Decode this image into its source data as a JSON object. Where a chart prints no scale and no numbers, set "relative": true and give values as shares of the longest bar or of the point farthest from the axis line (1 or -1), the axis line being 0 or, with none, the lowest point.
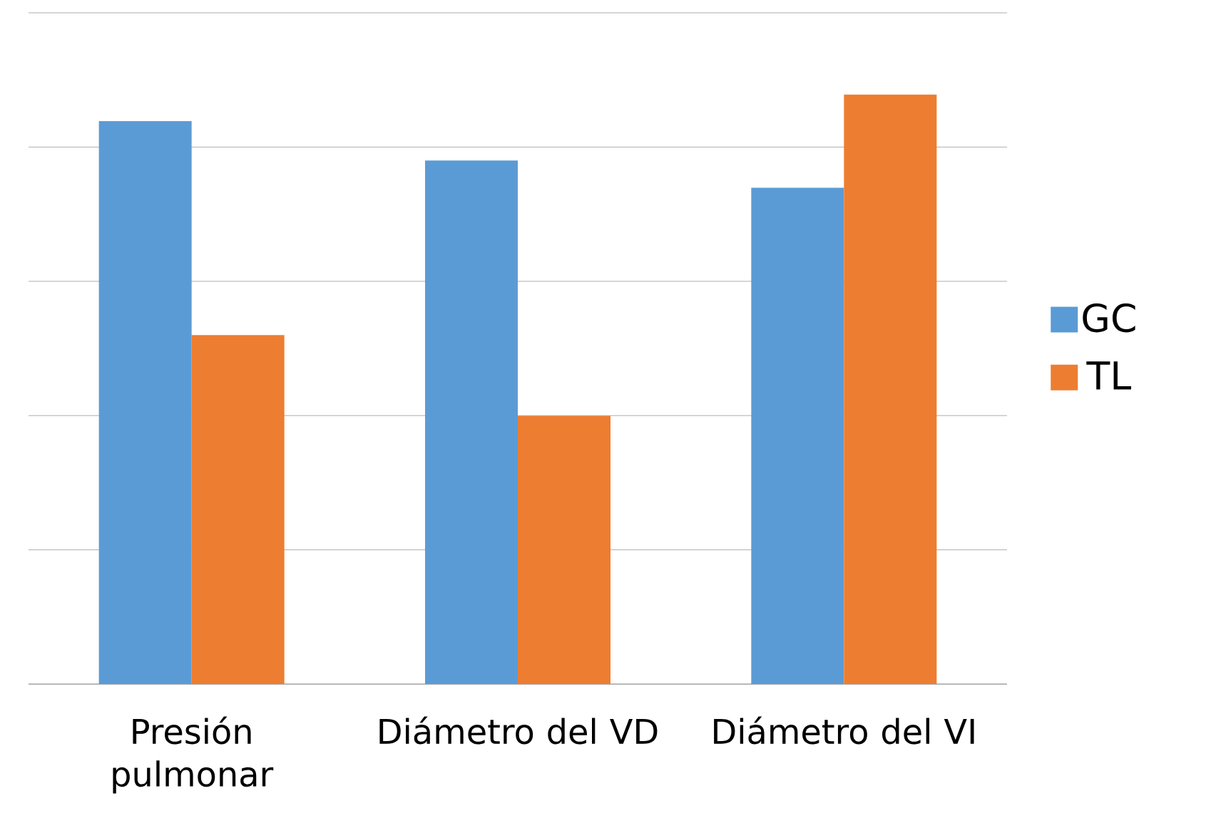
{
  "chart_data": {
    "type": "bar",
    "relative": true,
    "grid": "y",
    "legend": "right",
    "categories": [
      "Presión pulmonar",
      "Diámetro del VD",
      "Diámetro del VI"
    ],
    "series": [
      {
        "name": "GC",
        "color": "#5b9bd5",
        "values": [
          0.955,
          0.888,
          0.842
        ]
      },
      {
        "name": "TL",
        "color": "#ed7d31",
        "values": [
          0.592,
          0.455,
          1
        ]
      }
    ]
  }
}
